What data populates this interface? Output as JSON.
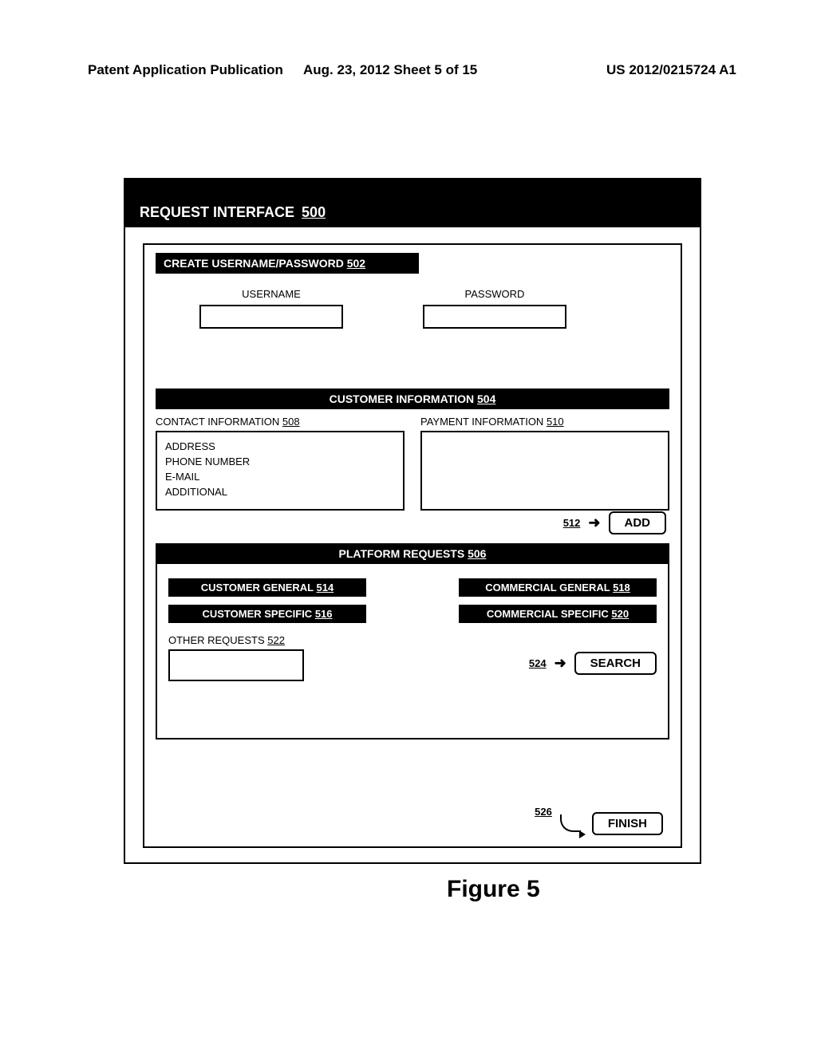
{
  "header": {
    "left": "Patent Application Publication",
    "mid": "Aug. 23, 2012  Sheet 5 of 15",
    "right": "US 2012/0215724 A1"
  },
  "window": {
    "title": "REQUEST  INTERFACE",
    "title_ref": "500"
  },
  "credentials": {
    "bar_text": "CREATE USERNAME/PASSWORD",
    "bar_ref": "502",
    "username_label": "USERNAME",
    "password_label": "PASSWORD"
  },
  "customer": {
    "bar_text": "CUSTOMER INFORMATION",
    "bar_ref": "504",
    "contact_label": "CONTACT INFORMATION",
    "contact_ref": "508",
    "lines": [
      "ADDRESS",
      "PHONE NUMBER",
      "E-MAIL",
      "ADDITIONAL"
    ],
    "payment_label": "PAYMENT INFORMATION",
    "payment_ref": "510",
    "add_ref": "512",
    "add_label": "ADD"
  },
  "platform": {
    "bar_text": "PLATFORM REQUESTS",
    "bar_ref": "506",
    "chips": [
      {
        "text": "CUSTOMER GENERAL",
        "ref": "514"
      },
      {
        "text": "CUSTOMER SPECIFIC",
        "ref": "516"
      },
      {
        "text": "COMMERCIAL GENERAL",
        "ref": "518"
      },
      {
        "text": "COMMERCIAL SPECIFIC",
        "ref": "520"
      }
    ],
    "other_label": "OTHER REQUESTS",
    "other_ref": "522",
    "search_ref": "524",
    "search_label": "SEARCH"
  },
  "finish": {
    "ref": "526",
    "label": "FINISH"
  },
  "figure_label": "Figure 5",
  "colors": {
    "black": "#000000",
    "white": "#ffffff"
  }
}
